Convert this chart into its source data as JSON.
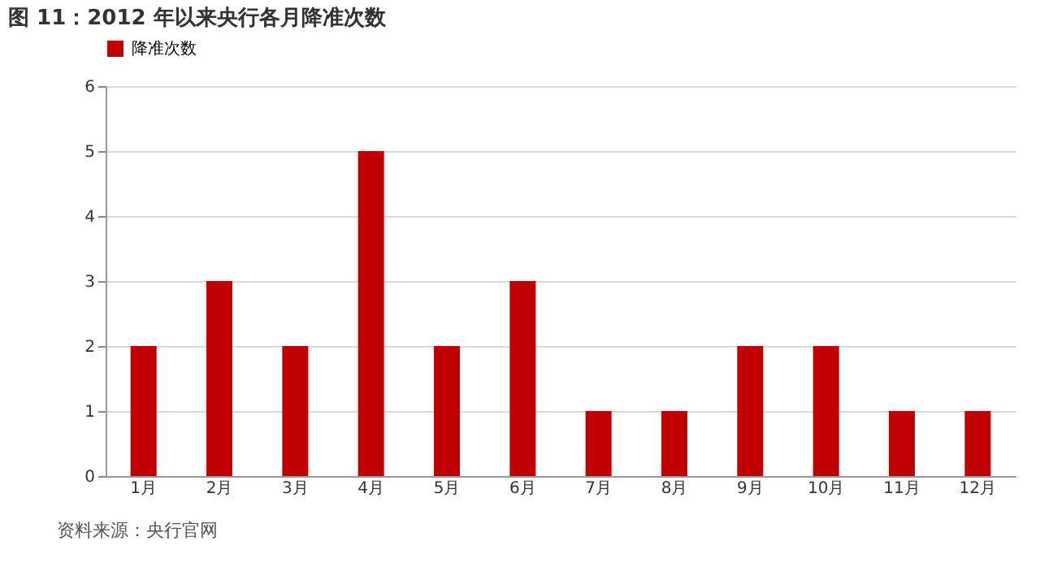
{
  "chart_data": {
    "type": "bar",
    "title": "图 11：2012 年以来央行各月降准次数",
    "categories": [
      "1月",
      "2月",
      "3月",
      "4月",
      "5月",
      "6月",
      "7月",
      "8月",
      "9月",
      "10月",
      "11月",
      "12月"
    ],
    "series": [
      {
        "name": "降准次数",
        "color": "#c00000",
        "values": [
          2,
          3,
          2,
          5,
          2,
          3,
          1,
          1,
          2,
          2,
          1,
          1
        ]
      }
    ],
    "ylim": [
      0,
      6
    ],
    "yticks": [
      0,
      1,
      2,
      3,
      4,
      5,
      6
    ],
    "grid": "y",
    "legend": "top",
    "annotations": [
      "资料来源：央行官网"
    ]
  }
}
